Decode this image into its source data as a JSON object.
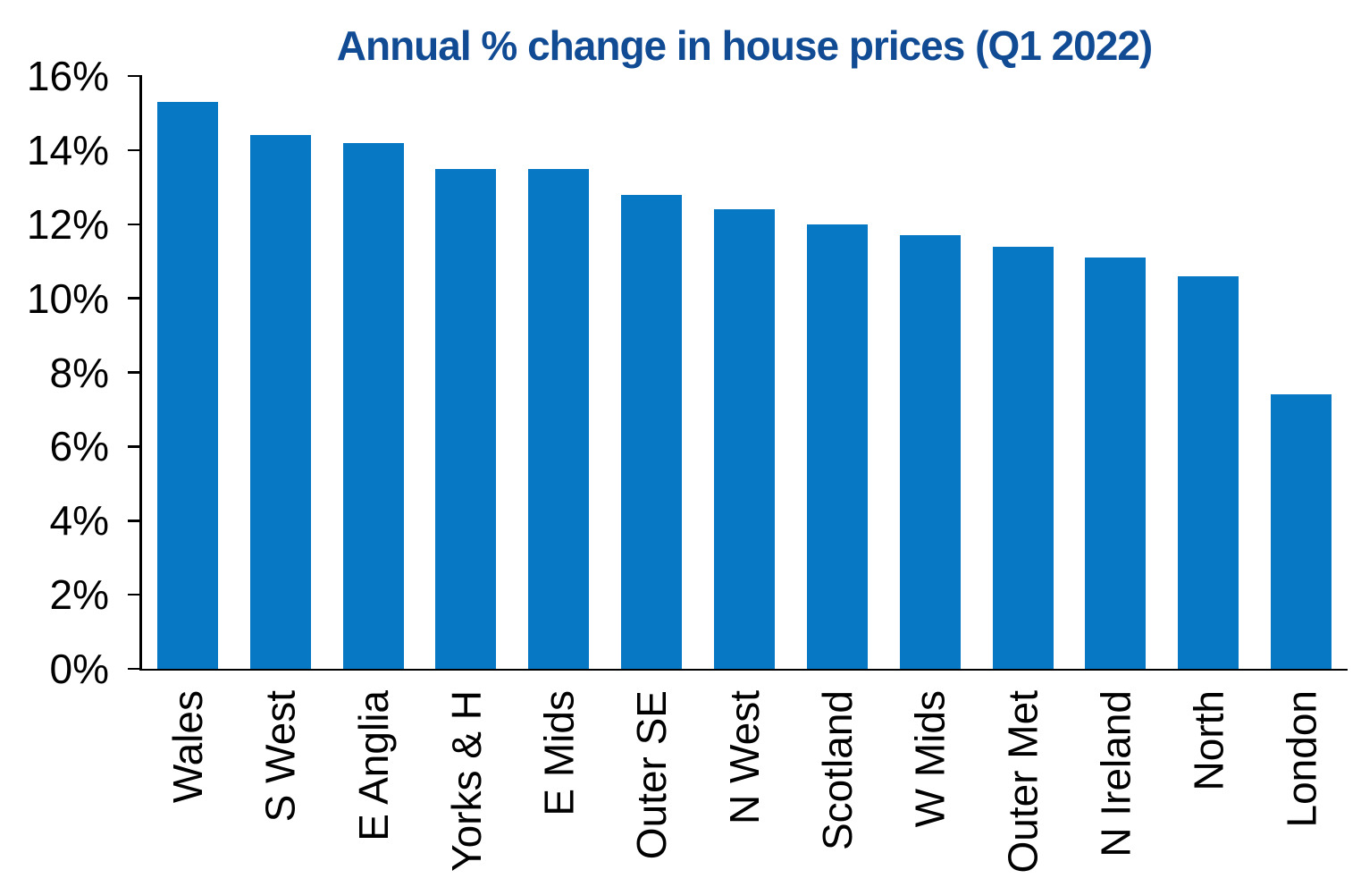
{
  "title": "Annual % change in house prices (Q1 2022)",
  "colors": {
    "bar": "#0778C4",
    "title": "#114B94",
    "axis": "#000000",
    "text": "#000000",
    "background": "#FFFFFF"
  },
  "chart_data": {
    "type": "bar",
    "title": "Annual % change in house prices (Q1 2022)",
    "categories": [
      "Wales",
      "S West",
      "E Anglia",
      "Yorks & H",
      "E Mids",
      "Outer SE",
      "N West",
      "Scotland",
      "W Mids",
      "Outer Met",
      "N Ireland",
      "North",
      "London"
    ],
    "values": [
      15.3,
      14.4,
      14.2,
      13.5,
      13.5,
      12.8,
      12.4,
      12.0,
      11.7,
      11.4,
      11.1,
      10.6,
      7.4
    ],
    "xlabel": "",
    "ylabel": "",
    "ylim": [
      0,
      16
    ],
    "ytick_step": 2,
    "ytick_labels": [
      "0%",
      "2%",
      "4%",
      "6%",
      "8%",
      "10%",
      "12%",
      "14%",
      "16%"
    ],
    "grid": false,
    "legend_position": "none",
    "x_labels_rotated_degrees": 90
  }
}
